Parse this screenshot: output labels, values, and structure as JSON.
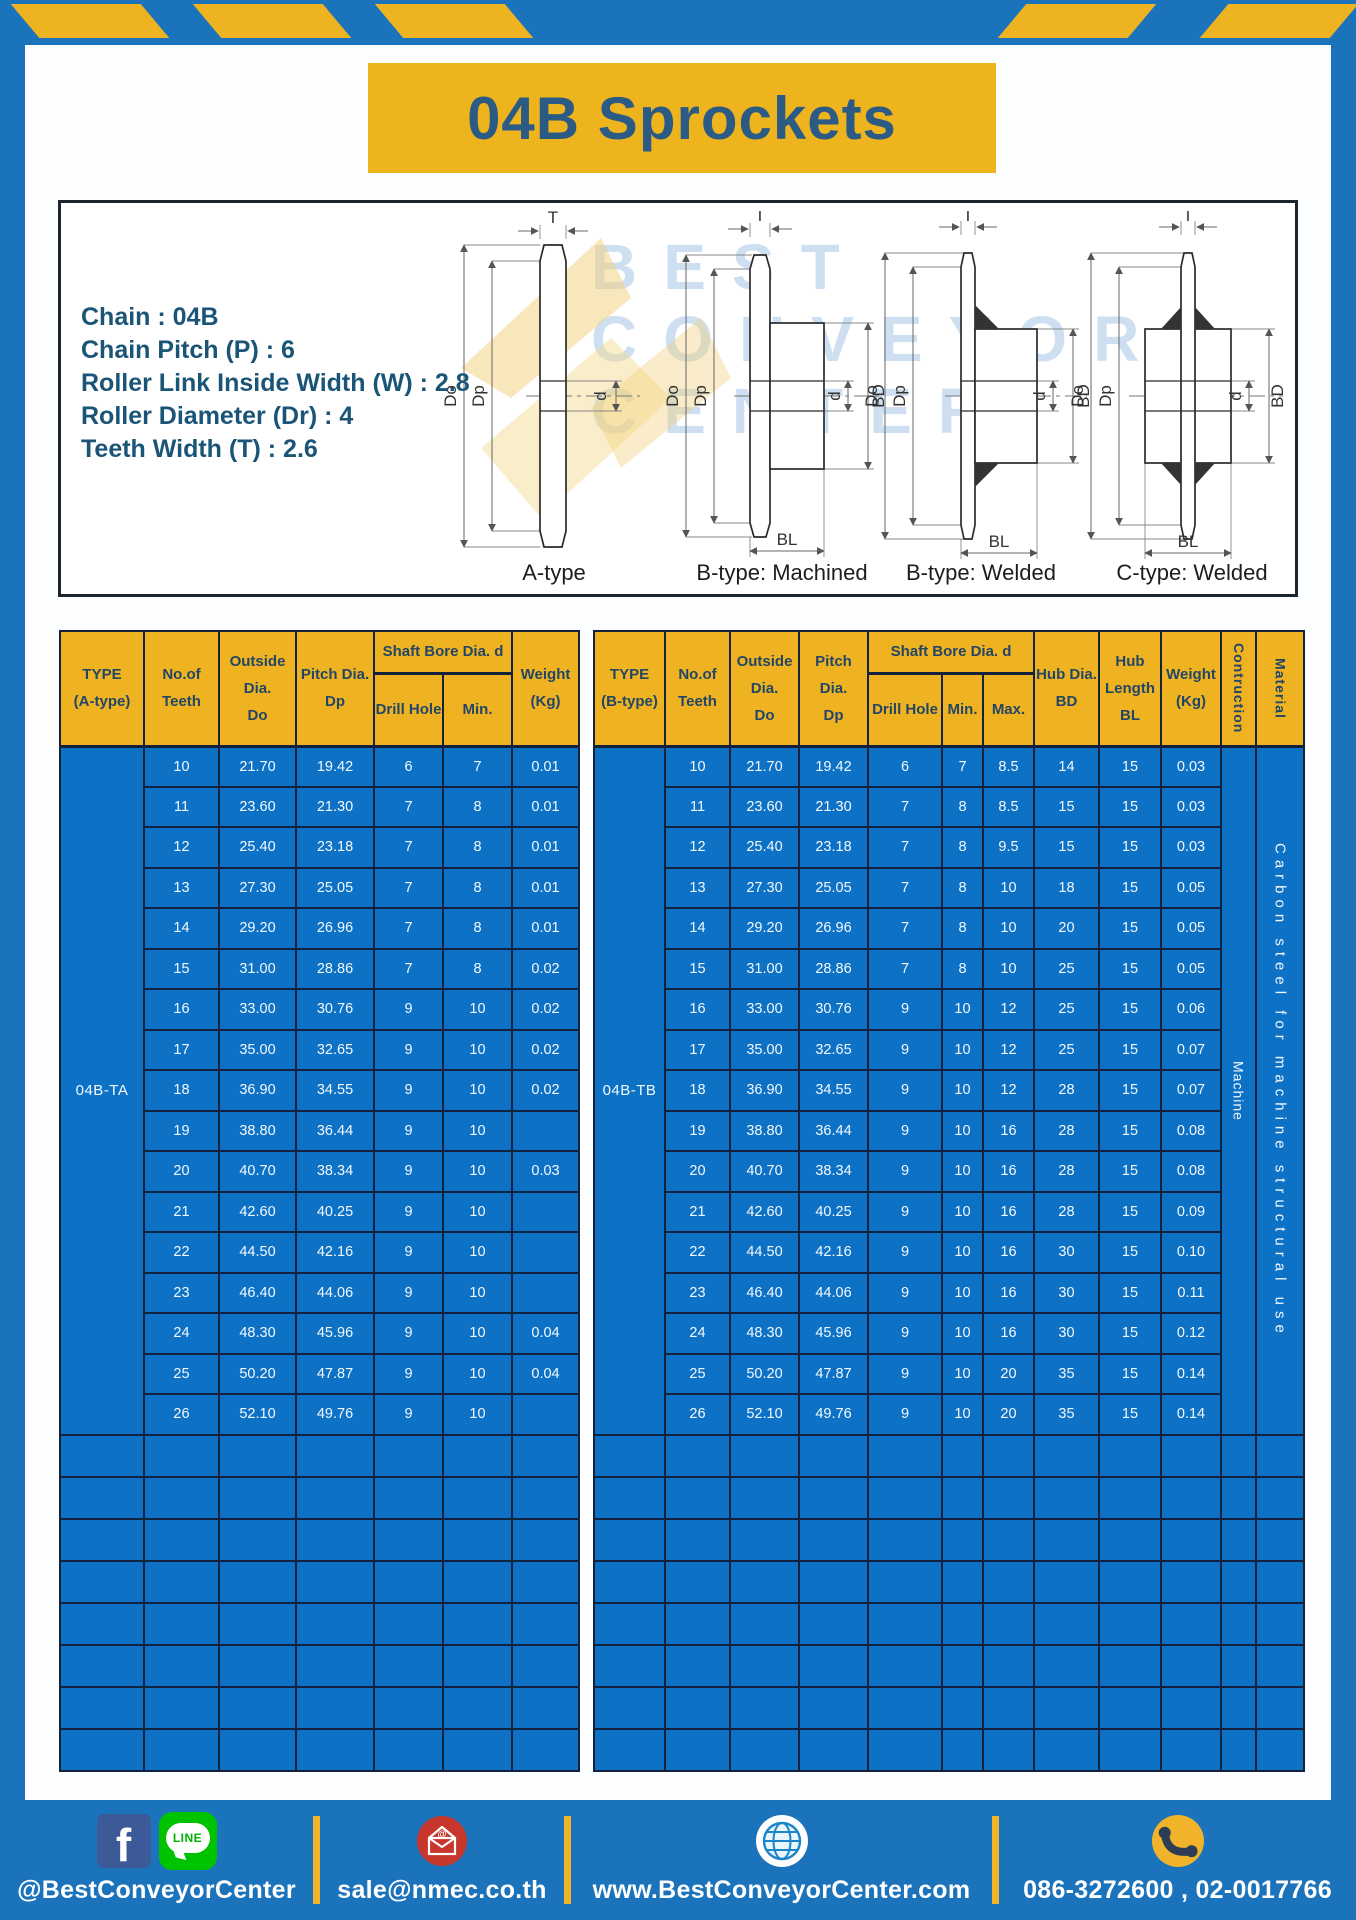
{
  "title": "04B Sprockets",
  "specs": [
    {
      "label": "Chain",
      "value": "04B"
    },
    {
      "label": "Chain Pitch (P)",
      "value": "6"
    },
    {
      "label": "Roller Link Inside Width (W)",
      "value": "2.8"
    },
    {
      "label": "Roller Diameter (Dr)",
      "value": "4"
    },
    {
      "label": "Teeth Width (T)",
      "value": "2.6"
    }
  ],
  "diagrams": {
    "watermark_lines": [
      "BEST",
      "CONVEYOR",
      "CENTER"
    ],
    "captions": [
      "A-type",
      "B-type: Machined",
      "B-type: Welded",
      "C-type: Welded"
    ],
    "dim_labels": {
      "t": "T",
      "do": "Do",
      "dp": "Dp",
      "d": "d",
      "bd": "BD",
      "bl": "BL"
    }
  },
  "table_a": {
    "col_headers": {
      "type": "TYPE\n(A-type)",
      "teeth": "No.of\nTeeth",
      "outside": "Outside\nDia.\nDo",
      "pitch": "Pitch Dia.\nDp",
      "shaft_bore": "Shaft Bore Dia. d",
      "drill": "Drill Hole",
      "min": "Min.",
      "weight": "Weight\n(Kg)"
    },
    "type_value": "04B-TA",
    "rows": [
      [
        "10",
        "21.70",
        "19.42",
        "6",
        "7",
        "0.01"
      ],
      [
        "11",
        "23.60",
        "21.30",
        "7",
        "8",
        "0.01"
      ],
      [
        "12",
        "25.40",
        "23.18",
        "7",
        "8",
        "0.01"
      ],
      [
        "13",
        "27.30",
        "25.05",
        "7",
        "8",
        "0.01"
      ],
      [
        "14",
        "29.20",
        "26.96",
        "7",
        "8",
        "0.01"
      ],
      [
        "15",
        "31.00",
        "28.86",
        "7",
        "8",
        "0.02"
      ],
      [
        "16",
        "33.00",
        "30.76",
        "9",
        "10",
        "0.02"
      ],
      [
        "17",
        "35.00",
        "32.65",
        "9",
        "10",
        "0.02"
      ],
      [
        "18",
        "36.90",
        "34.55",
        "9",
        "10",
        "0.02"
      ],
      [
        "19",
        "38.80",
        "36.44",
        "9",
        "10",
        ""
      ],
      [
        "20",
        "40.70",
        "38.34",
        "9",
        "10",
        "0.03"
      ],
      [
        "21",
        "42.60",
        "40.25",
        "9",
        "10",
        ""
      ],
      [
        "22",
        "44.50",
        "42.16",
        "9",
        "10",
        ""
      ],
      [
        "23",
        "46.40",
        "44.06",
        "9",
        "10",
        ""
      ],
      [
        "24",
        "48.30",
        "45.96",
        "9",
        "10",
        "0.04"
      ],
      [
        "25",
        "50.20",
        "47.87",
        "9",
        "10",
        "0.04"
      ],
      [
        "26",
        "52.10",
        "49.76",
        "9",
        "10",
        ""
      ]
    ],
    "empty_row_count": 8
  },
  "table_b": {
    "col_headers": {
      "type": "TYPE\n(B-type)",
      "teeth": "No.of\nTeeth",
      "outside": "Outside\nDia.\nDo",
      "pitch": "Pitch Dia.\nDp",
      "shaft_bore": "Shaft Bore Dia. d",
      "drill": "Drill Hole",
      "min": "Min.",
      "max": "Max.",
      "hub_dia": "Hub Dia.\nBD",
      "hub_len": "Hub\nLength\nBL",
      "weight": "Weight\n(Kg)",
      "construction": "Contruction",
      "material": "Material"
    },
    "type_value": "04B-TB",
    "construction_value": "Machine",
    "material_value": "Carbon steel for machine structural use",
    "rows": [
      [
        "10",
        "21.70",
        "19.42",
        "6",
        "7",
        "8.5",
        "14",
        "15",
        "0.03"
      ],
      [
        "11",
        "23.60",
        "21.30",
        "7",
        "8",
        "8.5",
        "15",
        "15",
        "0.03"
      ],
      [
        "12",
        "25.40",
        "23.18",
        "7",
        "8",
        "9.5",
        "15",
        "15",
        "0.03"
      ],
      [
        "13",
        "27.30",
        "25.05",
        "7",
        "8",
        "10",
        "18",
        "15",
        "0.05"
      ],
      [
        "14",
        "29.20",
        "26.96",
        "7",
        "8",
        "10",
        "20",
        "15",
        "0.05"
      ],
      [
        "15",
        "31.00",
        "28.86",
        "7",
        "8",
        "10",
        "25",
        "15",
        "0.05"
      ],
      [
        "16",
        "33.00",
        "30.76",
        "9",
        "10",
        "12",
        "25",
        "15",
        "0.06"
      ],
      [
        "17",
        "35.00",
        "32.65",
        "9",
        "10",
        "12",
        "25",
        "15",
        "0.07"
      ],
      [
        "18",
        "36.90",
        "34.55",
        "9",
        "10",
        "12",
        "28",
        "15",
        "0.07"
      ],
      [
        "19",
        "38.80",
        "36.44",
        "9",
        "10",
        "16",
        "28",
        "15",
        "0.08"
      ],
      [
        "20",
        "40.70",
        "38.34",
        "9",
        "10",
        "16",
        "28",
        "15",
        "0.08"
      ],
      [
        "21",
        "42.60",
        "40.25",
        "9",
        "10",
        "16",
        "28",
        "15",
        "0.09"
      ],
      [
        "22",
        "44.50",
        "42.16",
        "9",
        "10",
        "16",
        "30",
        "15",
        "0.10"
      ],
      [
        "23",
        "46.40",
        "44.06",
        "9",
        "10",
        "16",
        "30",
        "15",
        "0.11"
      ],
      [
        "24",
        "48.30",
        "45.96",
        "9",
        "10",
        "16",
        "30",
        "15",
        "0.12"
      ],
      [
        "25",
        "50.20",
        "47.87",
        "9",
        "10",
        "20",
        "35",
        "15",
        "0.14"
      ],
      [
        "26",
        "52.10",
        "49.76",
        "9",
        "10",
        "20",
        "35",
        "15",
        "0.14"
      ]
    ],
    "empty_row_count": 8
  },
  "footer": {
    "items": [
      {
        "icons": [
          "facebook",
          "line"
        ],
        "text": "@BestConveyorCenter"
      },
      {
        "icons": [
          "email"
        ],
        "text": "sale@nmec.co.th"
      },
      {
        "icons": [
          "globe"
        ],
        "text": "www.BestConveyorCenter.com"
      },
      {
        "icons": [
          "phone"
        ],
        "text": "086-3272600 , 02-0017766"
      }
    ]
  },
  "colors": {
    "frame_blue": "#1b73bc",
    "accent_yellow": "#eeb320",
    "cell_blue": "#0d71c5",
    "grid_navy": "#14213a",
    "title_text": "#2b5b84",
    "specs_text": "#1a5578",
    "header_text": "#234666"
  }
}
